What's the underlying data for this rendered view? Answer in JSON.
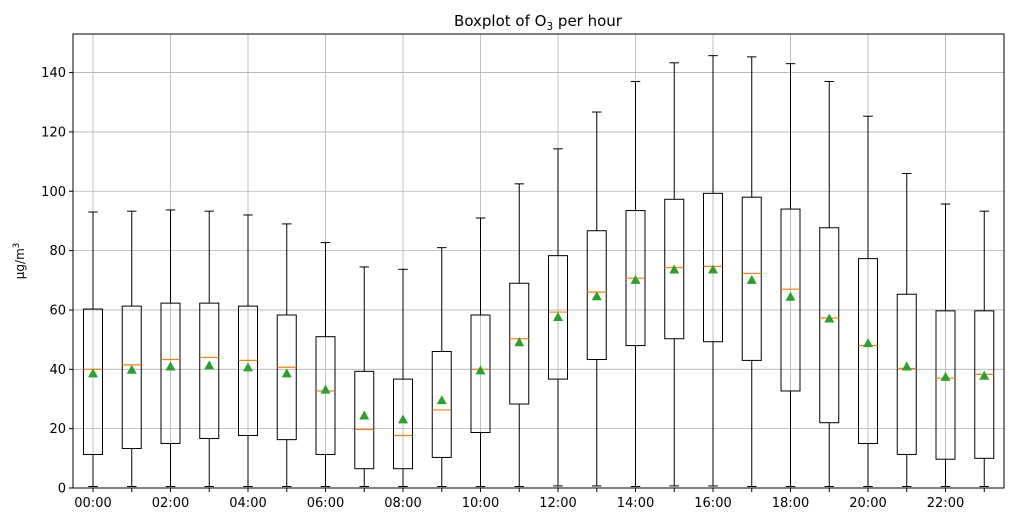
{
  "chart_data": {
    "type": "boxplot",
    "title": {
      "prefix": "Boxplot of O",
      "subscript": "3",
      "suffix": " per hour"
    },
    "ylabel": {
      "base": "µg/m",
      "superscript": "3"
    },
    "xlabel": "",
    "ylim": [
      0,
      153
    ],
    "yticks": [
      0,
      20,
      40,
      60,
      80,
      100,
      120,
      140
    ],
    "xtick_labels": [
      "00:00",
      "02:00",
      "04:00",
      "06:00",
      "08:00",
      "10:00",
      "12:00",
      "14:00",
      "16:00",
      "18:00",
      "20:00",
      "22:00"
    ],
    "categories": [
      "00:00",
      "01:00",
      "02:00",
      "03:00",
      "04:00",
      "05:00",
      "06:00",
      "07:00",
      "08:00",
      "09:00",
      "10:00",
      "11:00",
      "12:00",
      "13:00",
      "14:00",
      "15:00",
      "16:00",
      "17:00",
      "18:00",
      "19:00",
      "20:00",
      "21:00",
      "22:00",
      "23:00"
    ],
    "grid": true,
    "colors": {
      "box": "#000000",
      "median": "#ff7f0e",
      "mean": "#2ca02c",
      "grid": "#b0b0b0"
    },
    "series": [
      {
        "whislo": 0.5,
        "q1": 11.3,
        "med": 40.0,
        "q3": 60.3,
        "whishi": 93.0,
        "mean": 38.5
      },
      {
        "whislo": 0.5,
        "q1": 13.3,
        "med": 41.5,
        "q3": 61.3,
        "whishi": 93.3,
        "mean": 39.7
      },
      {
        "whislo": 0.5,
        "q1": 15.0,
        "med": 43.3,
        "q3": 62.3,
        "whishi": 93.7,
        "mean": 40.8
      },
      {
        "whislo": 0.5,
        "q1": 16.7,
        "med": 44.0,
        "q3": 62.3,
        "whishi": 93.3,
        "mean": 41.2
      },
      {
        "whislo": 0.5,
        "q1": 17.7,
        "med": 43.0,
        "q3": 61.3,
        "whishi": 92.0,
        "mean": 40.5
      },
      {
        "whislo": 0.5,
        "q1": 16.3,
        "med": 40.7,
        "q3": 58.3,
        "whishi": 89.0,
        "mean": 38.5
      },
      {
        "whislo": 0.5,
        "q1": 11.3,
        "med": 32.7,
        "q3": 51.0,
        "whishi": 82.7,
        "mean": 33.0
      },
      {
        "whislo": 0.5,
        "q1": 6.5,
        "med": 19.7,
        "q3": 39.3,
        "whishi": 74.5,
        "mean": 24.3
      },
      {
        "whislo": 0.5,
        "q1": 6.5,
        "med": 17.7,
        "q3": 36.7,
        "whishi": 73.7,
        "mean": 23.0
      },
      {
        "whislo": 0.5,
        "q1": 10.3,
        "med": 26.3,
        "q3": 46.0,
        "whishi": 81.0,
        "mean": 29.5
      },
      {
        "whislo": 0.5,
        "q1": 18.7,
        "med": 40.0,
        "q3": 58.3,
        "whishi": 91.0,
        "mean": 39.5
      },
      {
        "whislo": 0.5,
        "q1": 28.3,
        "med": 50.3,
        "q3": 69.0,
        "whishi": 102.5,
        "mean": 49.0
      },
      {
        "whislo": 0.7,
        "q1": 36.7,
        "med": 59.3,
        "q3": 78.3,
        "whishi": 114.3,
        "mean": 57.5
      },
      {
        "whislo": 0.7,
        "q1": 43.3,
        "med": 66.0,
        "q3": 86.7,
        "whishi": 126.7,
        "mean": 64.5
      },
      {
        "whislo": 0.5,
        "q1": 48.0,
        "med": 70.7,
        "q3": 93.5,
        "whishi": 137.0,
        "mean": 70.0
      },
      {
        "whislo": 0.7,
        "q1": 50.3,
        "med": 74.3,
        "q3": 97.3,
        "whishi": 143.3,
        "mean": 73.5
      },
      {
        "whislo": 0.7,
        "q1": 49.3,
        "med": 74.7,
        "q3": 99.3,
        "whishi": 145.7,
        "mean": 73.5
      },
      {
        "whislo": 0.5,
        "q1": 43.0,
        "med": 72.3,
        "q3": 98.0,
        "whishi": 145.3,
        "mean": 70.0
      },
      {
        "whislo": 0.5,
        "q1": 32.7,
        "med": 67.0,
        "q3": 94.0,
        "whishi": 143.0,
        "mean": 64.3
      },
      {
        "whislo": 0.5,
        "q1": 22.0,
        "med": 57.3,
        "q3": 87.7,
        "whishi": 137.0,
        "mean": 57.0
      },
      {
        "whislo": 0.5,
        "q1": 15.0,
        "med": 48.0,
        "q3": 77.3,
        "whishi": 125.3,
        "mean": 48.7
      },
      {
        "whislo": 0.5,
        "q1": 11.3,
        "med": 40.3,
        "q3": 65.3,
        "whishi": 106.0,
        "mean": 40.8
      },
      {
        "whislo": 0.5,
        "q1": 9.7,
        "med": 37.0,
        "q3": 59.7,
        "whishi": 95.7,
        "mean": 37.3
      },
      {
        "whislo": 0.5,
        "q1": 10.0,
        "med": 38.3,
        "q3": 59.7,
        "whishi": 93.3,
        "mean": 37.7
      }
    ]
  }
}
